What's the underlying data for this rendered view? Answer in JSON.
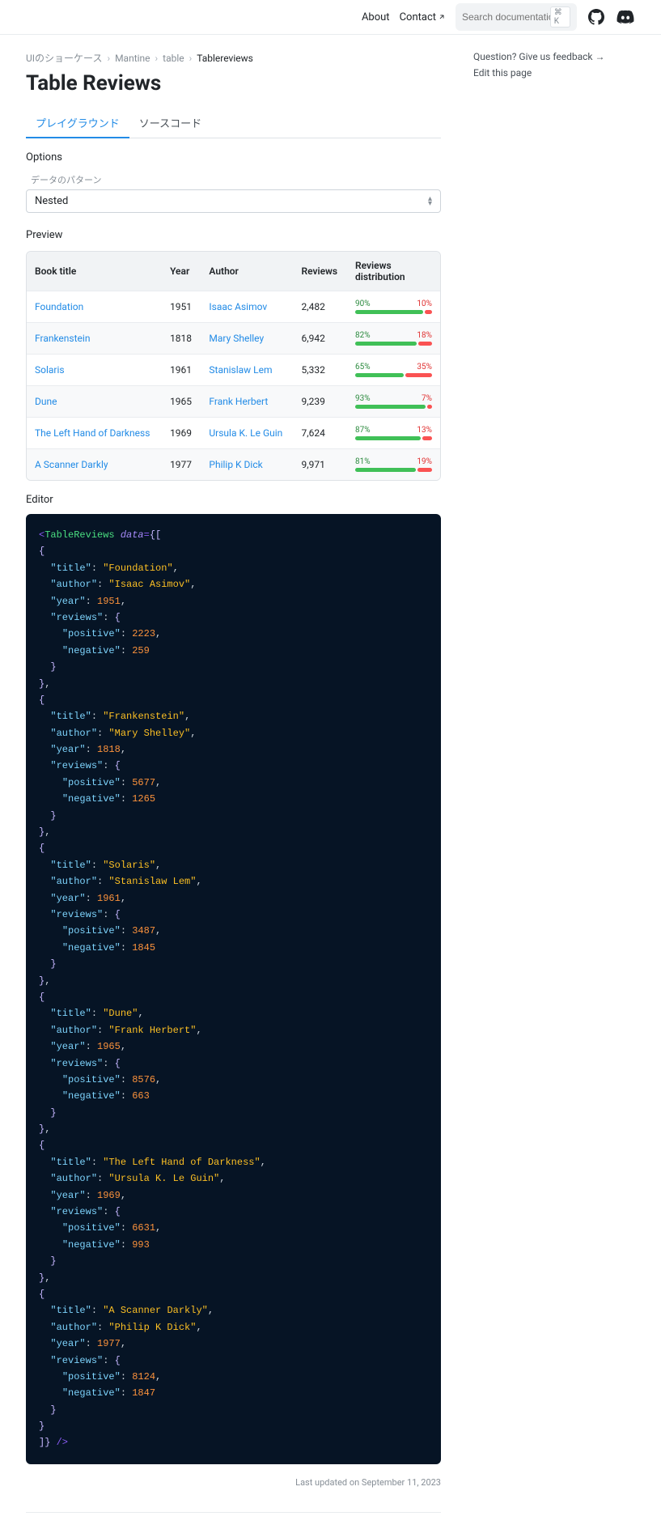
{
  "nav": {
    "about": "About",
    "contact": "Contact",
    "search_placeholder": "Search documentation…",
    "kbd": "⌘ K"
  },
  "sidebar": {
    "feedback": "Question? Give us feedback →",
    "edit": "Edit this page"
  },
  "breadcrumb": {
    "items": [
      "UIのショーケース",
      "Mantine",
      "table"
    ],
    "current": "Tablereviews"
  },
  "page": {
    "title": "Table Reviews",
    "tabs": [
      "プレイグラウンド",
      "ソースコード"
    ],
    "options_label": "Options",
    "data_pattern_label": "データのパターン",
    "data_pattern_value": "Nested",
    "preview_label": "Preview",
    "editor_label": "Editor",
    "footer": "Last updated on September 11, 2023"
  },
  "table": {
    "columns": [
      "Book title",
      "Year",
      "Author",
      "Reviews",
      "Reviews distribution"
    ],
    "rows": [
      {
        "title": "Foundation",
        "year": "1951",
        "author": "Isaac Asimov",
        "reviews": "2,482",
        "pos": 90,
        "neg": 10
      },
      {
        "title": "Frankenstein",
        "year": "1818",
        "author": "Mary Shelley",
        "reviews": "6,942",
        "pos": 82,
        "neg": 18
      },
      {
        "title": "Solaris",
        "year": "1961",
        "author": "Stanislaw Lem",
        "reviews": "5,332",
        "pos": 65,
        "neg": 35
      },
      {
        "title": "Dune",
        "year": "1965",
        "author": "Frank Herbert",
        "reviews": "9,239",
        "pos": 93,
        "neg": 7
      },
      {
        "title": "The Left Hand of Darkness",
        "year": "1969",
        "author": "Ursula K. Le Guin",
        "reviews": "7,624",
        "pos": 87,
        "neg": 13
      },
      {
        "title": "A Scanner Darkly",
        "year": "1977",
        "author": "Philip K Dick",
        "reviews": "9,971",
        "pos": 81,
        "neg": 19
      }
    ]
  },
  "code": {
    "component": "TableReviews",
    "attr": "data",
    "books": [
      {
        "title": "Foundation",
        "author": "Isaac Asimov",
        "year": 1951,
        "positive": 2223,
        "negative": 259
      },
      {
        "title": "Frankenstein",
        "author": "Mary Shelley",
        "year": 1818,
        "positive": 5677,
        "negative": 1265
      },
      {
        "title": "Solaris",
        "author": "Stanislaw Lem",
        "year": 1961,
        "positive": 3487,
        "negative": 1845
      },
      {
        "title": "Dune",
        "author": "Frank Herbert",
        "year": 1965,
        "positive": 8576,
        "negative": 663
      },
      {
        "title": "The Left Hand of Darkness",
        "author": "Ursula K. Le Guin",
        "year": 1969,
        "positive": 6631,
        "negative": 993
      },
      {
        "title": "A Scanner Darkly",
        "author": "Philip K Dick",
        "year": 1977,
        "positive": 8124,
        "negative": 1847
      }
    ]
  },
  "colors": {
    "link": "#228be6",
    "positive": "#40c057",
    "negative": "#fa5252",
    "editor_bg": "#061425"
  }
}
